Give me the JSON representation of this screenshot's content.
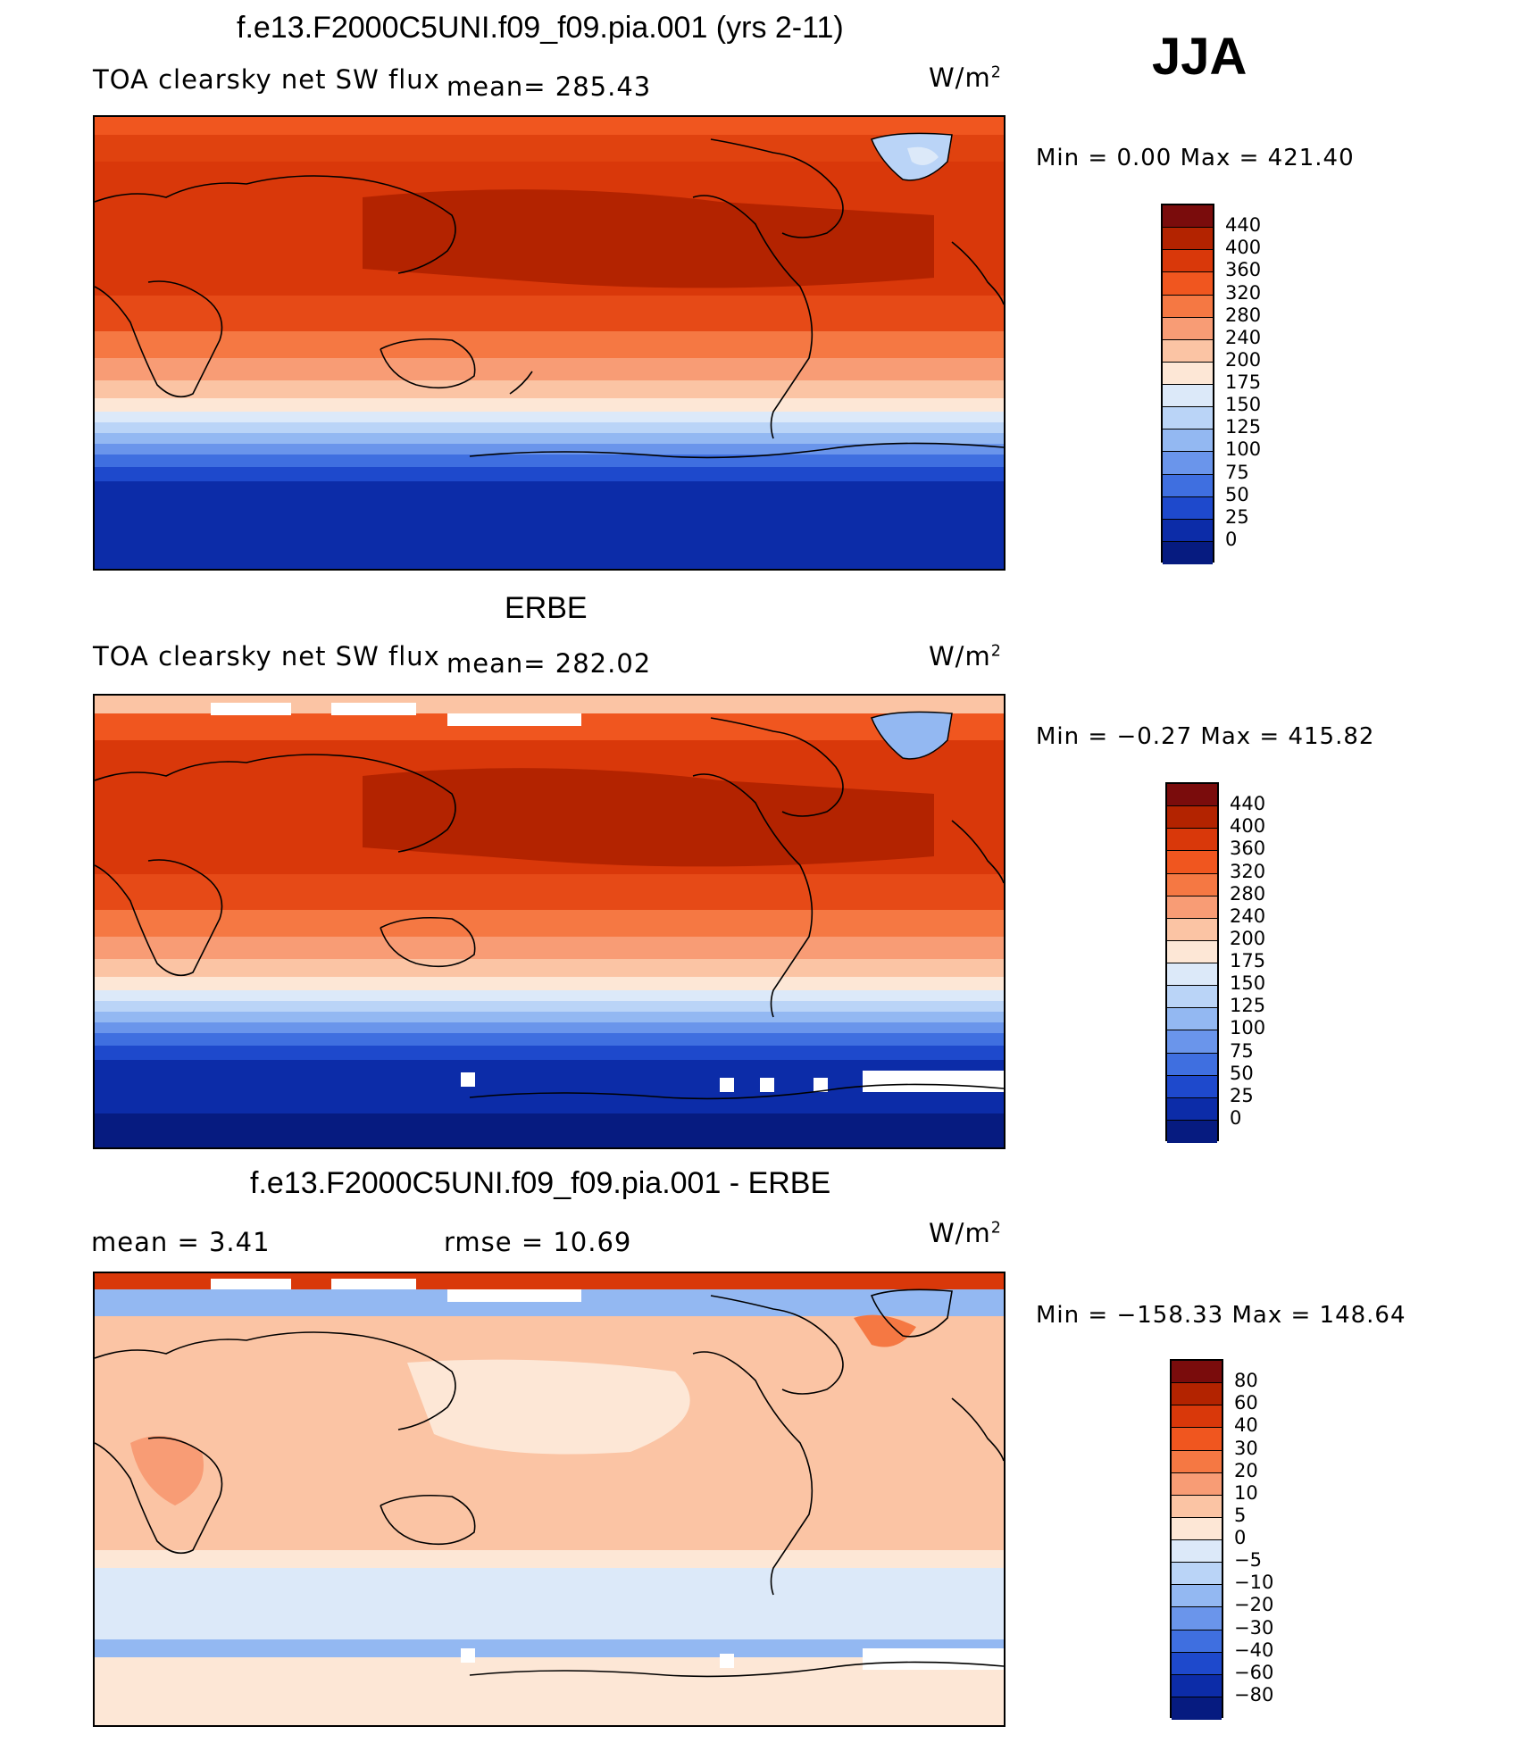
{
  "season": "JJA",
  "panels": [
    {
      "title": "f.e13.F2000C5UNI.f09_f09.pia.001 (yrs 2-11)",
      "variable": "TOA clearsky net SW flux",
      "stat_left": "mean= 285.43",
      "units": "W/m",
      "units_exp": "2",
      "minmax": "Min =    0.00 Max = 421.40"
    },
    {
      "title": "ERBE",
      "variable": "TOA clearsky net SW flux",
      "stat_left": "mean= 282.02",
      "units": "W/m",
      "units_exp": "2",
      "minmax": "Min =  −0.27 Max = 415.82"
    },
    {
      "title": "f.e13.F2000C5UNI.f09_f09.pia.001 - ERBE",
      "stat_left": "mean =     3.41",
      "stat_right": "rmse =    10.69",
      "units": "W/m",
      "units_exp": "2",
      "minmax": "Min = −158.33 Max = 148.64"
    }
  ],
  "colorbars": [
    {
      "labels": [
        "440",
        "400",
        "360",
        "320",
        "280",
        "240",
        "200",
        "175",
        "150",
        "125",
        "100",
        "75",
        "50",
        "25",
        "0"
      ],
      "colors": [
        "#7a0c0c",
        "#b32300",
        "#d9380a",
        "#f0561f",
        "#f57843",
        "#f89c75",
        "#fbc4a4",
        "#fde7d6",
        "#dce9f9",
        "#bad4f7",
        "#93b8f2",
        "#6a95eb",
        "#3f6fe0",
        "#1e49cc",
        "#0c2ca8",
        "#061b80"
      ]
    },
    {
      "labels": [
        "440",
        "400",
        "360",
        "320",
        "280",
        "240",
        "200",
        "175",
        "150",
        "125",
        "100",
        "75",
        "50",
        "25",
        "0"
      ],
      "colors": [
        "#7a0c0c",
        "#b32300",
        "#d9380a",
        "#f0561f",
        "#f57843",
        "#f89c75",
        "#fbc4a4",
        "#fde7d6",
        "#dce9f9",
        "#bad4f7",
        "#93b8f2",
        "#6a95eb",
        "#3f6fe0",
        "#1e49cc",
        "#0c2ca8",
        "#061b80"
      ]
    },
    {
      "labels": [
        "80",
        "60",
        "40",
        "30",
        "20",
        "10",
        "5",
        "0",
        "−5",
        "−10",
        "−20",
        "−30",
        "−40",
        "−60",
        "−80"
      ],
      "colors": [
        "#7a0c0c",
        "#b32300",
        "#d9380a",
        "#f0561f",
        "#f57843",
        "#f89c75",
        "#fbc4a4",
        "#fde7d6",
        "#dce9f9",
        "#bad4f7",
        "#93b8f2",
        "#6a95eb",
        "#3f6fe0",
        "#1e49cc",
        "#0c2ca8",
        "#061b80"
      ]
    }
  ]
}
